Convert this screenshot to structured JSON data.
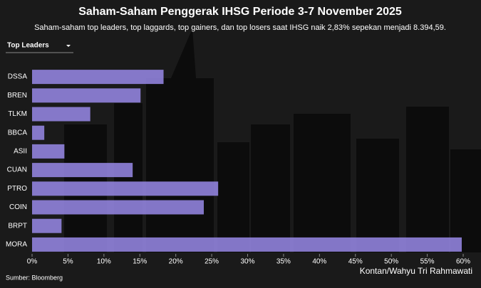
{
  "chart_data": {
    "type": "hbar",
    "title": "Saham-Saham Penggerak IHSG Periode 3-7 November 2025",
    "subtitle": "Saham-saham top leaders, top laggards, top gainers, dan top losers saat IHSG naik 2,83% sepekan menjadi 8.394,59.",
    "dropdown": "Top Leaders",
    "categories": [
      "DSSA",
      "BREN",
      "TLKM",
      "BBCA",
      "ASII",
      "CUAN",
      "PTRO",
      "COIN",
      "BRPT",
      "MORA"
    ],
    "values": [
      18.3,
      15.1,
      8.1,
      1.7,
      4.5,
      14.0,
      25.9,
      23.9,
      4.1,
      59.8
    ],
    "color": "#8e80d8",
    "xlim": [
      0,
      60
    ],
    "xticks": [
      {
        "value": 0,
        "label": "0%"
      },
      {
        "value": 5,
        "label": "5%"
      },
      {
        "value": 10,
        "label": "10%"
      },
      {
        "value": 15,
        "label": "15%"
      },
      {
        "value": 20,
        "label": "20%"
      },
      {
        "value": 25,
        "label": "25%"
      },
      {
        "value": 30,
        "label": "30%"
      },
      {
        "value": 35,
        "label": "35%"
      },
      {
        "value": 40,
        "label": "40%"
      },
      {
        "value": 45,
        "label": "45%"
      },
      {
        "value": 50,
        "label": "50%"
      },
      {
        "value": 55,
        "label": "55%"
      },
      {
        "value": 60,
        "label": "60%"
      }
    ],
    "source": "Sumber: Bloomberg",
    "credit": "Kontan/Wahyu Tri Rahmawati"
  }
}
